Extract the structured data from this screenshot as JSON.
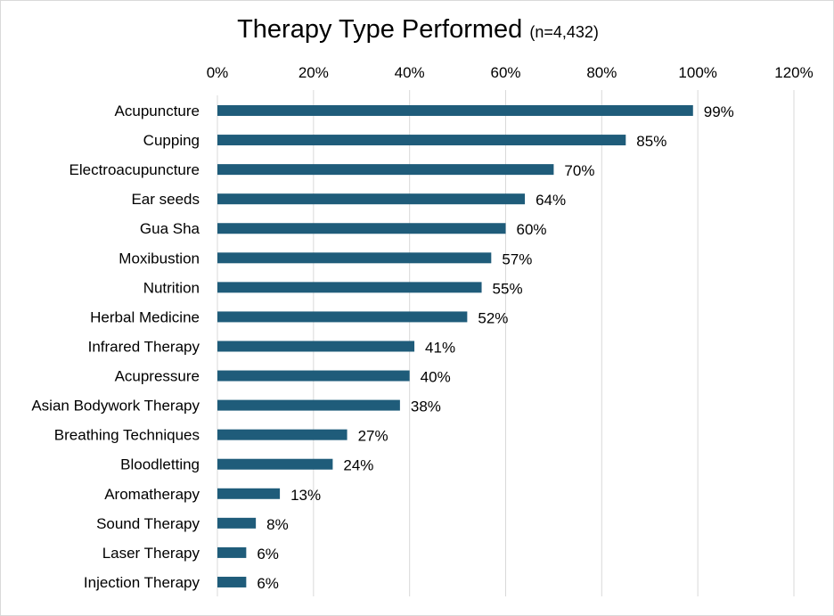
{
  "chart_data": {
    "type": "bar",
    "orientation": "horizontal",
    "title": "Therapy Type Performed",
    "subtitle": "(n=4,432)",
    "xlabel": "",
    "ylabel": "",
    "xlim": [
      0,
      120
    ],
    "x_ticks": [
      "0%",
      "20%",
      "40%",
      "60%",
      "80%",
      "100%",
      "120%"
    ],
    "grid": true,
    "legend": "none",
    "bar_color": "#1f5c7a",
    "categories": [
      "Acupuncture",
      "Cupping",
      "Electroacupuncture",
      "Ear seeds",
      "Gua Sha",
      "Moxibustion",
      "Nutrition",
      "Herbal Medicine",
      "Infrared Therapy",
      "Acupressure",
      "Asian Bodywork Therapy",
      "Breathing Techniques",
      "Bloodletting",
      "Aromatherapy",
      "Sound Therapy",
      "Laser Therapy",
      "Injection Therapy"
    ],
    "values": [
      99,
      85,
      70,
      64,
      60,
      57,
      55,
      52,
      41,
      40,
      38,
      27,
      24,
      13,
      8,
      6,
      6
    ],
    "data_labels": [
      "99%",
      "85%",
      "70%",
      "64%",
      "60%",
      "57%",
      "55%",
      "52%",
      "41%",
      "40%",
      "38%",
      "27%",
      "24%",
      "13%",
      "8%",
      "6%",
      "6%"
    ]
  }
}
